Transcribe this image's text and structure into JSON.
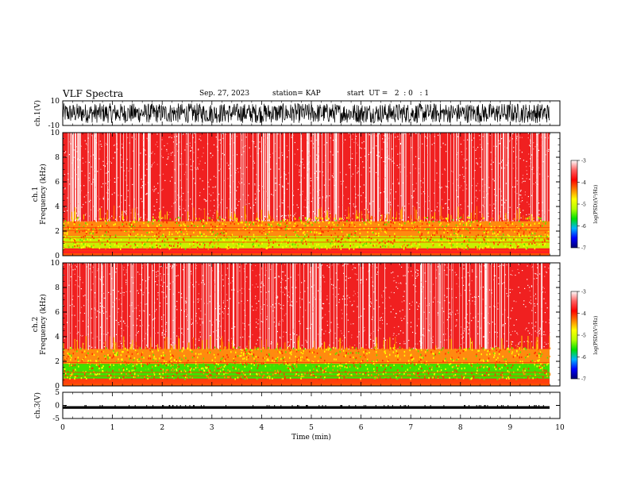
{
  "header": {
    "title": "VLF Spectra",
    "date": "Sep. 27, 2023",
    "station": "station= KAP",
    "start": "start  UT =   2  : 0   : 1"
  },
  "colors": {
    "spectrogram_base": "#ff1010",
    "colormap": [
      "#000070",
      "#0000ff",
      "#00b4ff",
      "#00e000",
      "#b4ff00",
      "#ffff00",
      "#ff8000",
      "#ff0000",
      "#ff6060",
      "#ffffff"
    ]
  },
  "chart_data": [
    {
      "type": "line",
      "name": "ch1-waveform",
      "ylabel": "ch.1(V)",
      "ylim": [
        -10,
        10
      ],
      "yticklabels": [
        "10",
        "-10"
      ],
      "xlim": [
        0,
        10
      ],
      "trace_amplitude_range": [
        -8,
        8
      ]
    },
    {
      "type": "heatmap",
      "name": "ch1-spectrogram",
      "ylabel": "ch.1\nFrequency (kHz)",
      "ylim": [
        0,
        10
      ],
      "yticks": [
        0,
        2,
        4,
        6,
        8,
        10
      ],
      "xlim": [
        0,
        9.8
      ],
      "colorbar": {
        "label": "log(PSD)(V²/Hz)",
        "range": [
          -7,
          -3
        ],
        "ticks": [
          -3,
          -4,
          -5,
          -6,
          -7
        ]
      },
      "bands": [
        {
          "fmin_khz": 0.0,
          "fmax_khz": 0.6,
          "level": "red"
        },
        {
          "fmin_khz": 0.6,
          "fmax_khz": 1.6,
          "level": "yellow-green"
        },
        {
          "fmin_khz": 1.6,
          "fmax_khz": 2.8,
          "level": "yellow-orange"
        },
        {
          "fmin_khz": 2.8,
          "fmax_khz": 10.0,
          "level": "red-white speckle"
        }
      ]
    },
    {
      "type": "heatmap",
      "name": "ch2-spectrogram",
      "ylabel": "ch.2\nFrequency (kHz)",
      "ylim": [
        0,
        10
      ],
      "yticks": [
        0,
        2,
        4,
        6,
        8,
        10
      ],
      "xlim": [
        0,
        9.8
      ],
      "colorbar": {
        "label": "log(PSD)(V²/Hz)",
        "range": [
          -7,
          -3
        ],
        "ticks": [
          -3,
          -4,
          -5,
          -6,
          -7
        ]
      },
      "bands": [
        {
          "fmin_khz": 0.0,
          "fmax_khz": 0.6,
          "level": "red-orange"
        },
        {
          "fmin_khz": 0.6,
          "fmax_khz": 1.8,
          "level": "green"
        },
        {
          "fmin_khz": 1.8,
          "fmax_khz": 3.0,
          "level": "yellow-orange"
        },
        {
          "fmin_khz": 3.0,
          "fmax_khz": 10.0,
          "level": "red-white speckle"
        }
      ]
    },
    {
      "type": "line",
      "name": "ch3-waveform",
      "ylabel": "ch.3(V)",
      "ylim": [
        -5,
        5
      ],
      "yticklabels": [
        "5",
        "0",
        "-5"
      ],
      "xlim": [
        0,
        9.8
      ],
      "trace_amplitude_range": [
        -1.3,
        -0.3
      ]
    }
  ],
  "x_axis": {
    "label": "Time (min)",
    "range": [
      0,
      10
    ],
    "ticks": [
      "0",
      "1",
      "2",
      "3",
      "4",
      "5",
      "6",
      "7",
      "8",
      "9",
      "10"
    ]
  }
}
